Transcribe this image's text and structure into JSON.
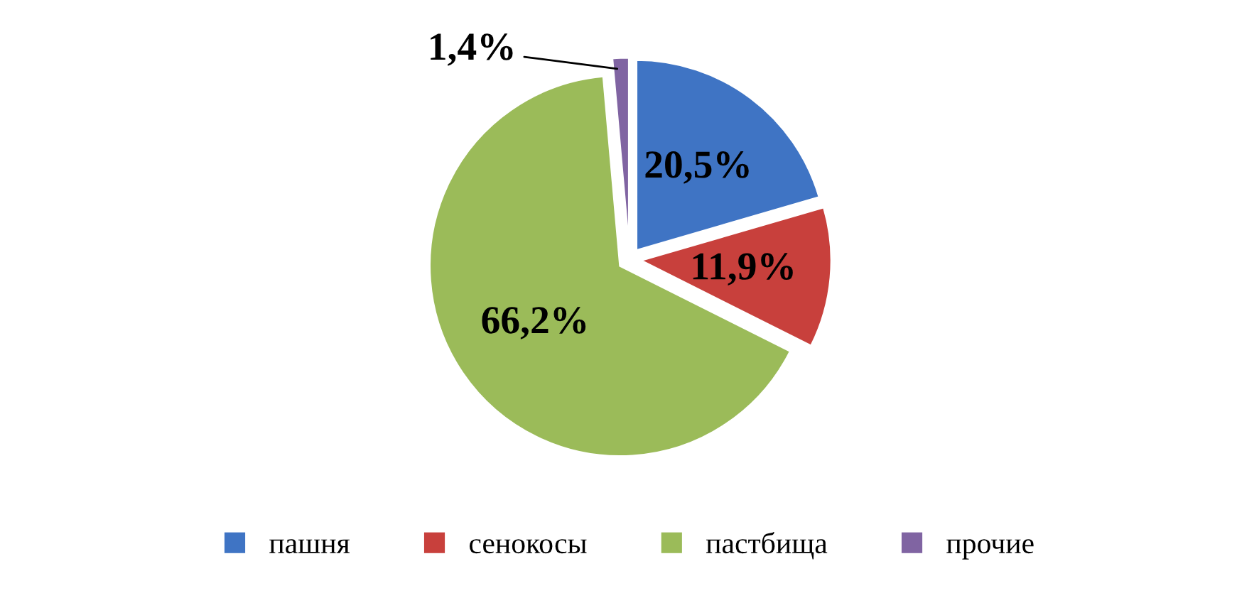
{
  "chart_data": {
    "type": "pie",
    "categories": [
      "пашня",
      "сенокосы",
      "пастбища",
      "прочие"
    ],
    "values": [
      20.5,
      11.9,
      66.2,
      1.4
    ],
    "colors": [
      "#3f74c4",
      "#c8403c",
      "#9bbb59",
      "#8064a2"
    ],
    "value_labels": [
      "20,5%",
      "11,9%",
      "66,2%",
      "1,4%"
    ],
    "legend": "bottom"
  }
}
